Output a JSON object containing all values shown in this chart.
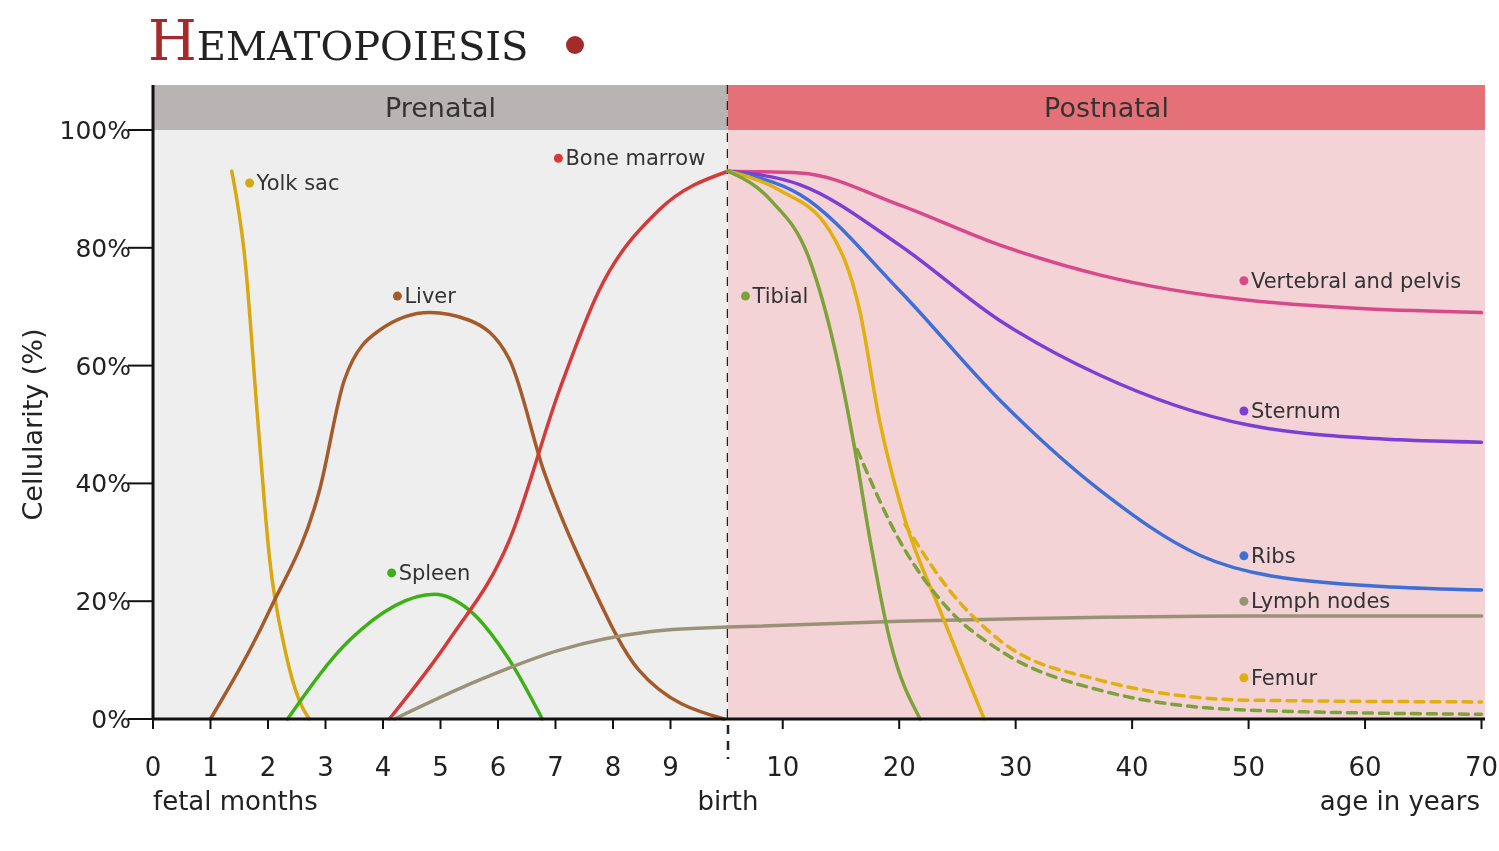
{
  "chart_data": [
    {
      "type": "line",
      "title": "HEMATOPOIESIS",
      "ylabel": "Cellularity (%)",
      "xlabel": "fetal months",
      "xlim": [
        0,
        10
      ],
      "xticks": [
        0,
        1,
        2,
        3,
        4,
        5,
        6,
        7,
        8,
        9
      ],
      "ylim": [
        0,
        100
      ],
      "yticks": [
        {
          "value": 0,
          "label": "0%"
        },
        {
          "value": 20,
          "label": "20%"
        },
        {
          "value": 40,
          "label": "40%"
        },
        {
          "value": 60,
          "label": "60%"
        },
        {
          "value": 80,
          "label": "80%"
        },
        {
          "value": 100,
          "label": "100%"
        }
      ],
      "grid": false,
      "legend": "top",
      "marker": "none",
      "bands": [
        {
          "axis": "x",
          "from": 0,
          "to": 10,
          "label": "Prenatal",
          "color": "#efeeee"
        }
      ],
      "ref_lines": [
        {
          "axis": "x",
          "value": 10,
          "label": "birth",
          "color": "#222222",
          "line_style": "dashed"
        }
      ],
      "series": [
        {
          "name": "Yolk sac",
          "color": "#d9a710",
          "x": [
            1.37,
            1.6,
            1.82,
            2.03,
            2.29,
            2.55,
            2.72
          ],
          "values": [
            93,
            78,
            51,
            27,
            12,
            3,
            0
          ]
        },
        {
          "name": "Liver",
          "color": "#a55a2a",
          "x": [
            1.0,
            2.03,
            2.9,
            3.33,
            3.94,
            4.81,
            5.5,
            6.2,
            6.8,
            7.59,
            8.45,
            9.93
          ],
          "values": [
            0,
            18.5,
            39,
            57.6,
            66,
            69,
            67.7,
            61,
            42,
            23.6,
            8.3,
            0
          ]
        },
        {
          "name": "Spleen",
          "color": "#3cb014",
          "x": [
            2.34,
            3.42,
            4.9,
            5.5,
            6.2,
            6.77
          ],
          "values": [
            0,
            13.4,
            21.2,
            18.5,
            10,
            0
          ]
        },
        {
          "name": "Bone marrow",
          "color": "#d43a3a",
          "x": [
            4.11,
            5.15,
            6.2,
            7.07,
            7.76,
            8.8,
            10
          ],
          "values": [
            0,
            13.4,
            30.4,
            55.9,
            72.8,
            86.4,
            93
          ]
        },
        {
          "color": "#9a9277",
          "x": [
            4.2,
            5.67,
            7.07,
            8.63,
            10
          ],
          "values": [
            0,
            6.6,
            11.7,
            14.8,
            15.6
          ]
        }
      ]
    },
    {
      "type": "line",
      "xlabel": "age in years",
      "xlim": [
        5.3,
        70.3
      ],
      "xticks": [
        10,
        20,
        30,
        40,
        50,
        60,
        70
      ],
      "ylim": [
        0,
        100
      ],
      "tick_labels": "x",
      "grid": false,
      "legend": "right",
      "marker": "none",
      "bands": [
        {
          "axis": "x",
          "from": 5.3,
          "to": 70.3,
          "label": "Postnatal",
          "color": "#f3d3d5"
        }
      ],
      "series": [
        {
          "name": "Vertebral and pelvis",
          "color": "#d9488a",
          "x": [
            5.3,
            11.5,
            20,
            28.6,
            37.2,
            50,
            70
          ],
          "values": [
            93,
            92.7,
            87.3,
            80.5,
            75.4,
            71.1,
            69
          ]
        },
        {
          "name": "Sternum",
          "color": "#7b3fd6",
          "x": [
            5.3,
            11.5,
            20,
            28.6,
            37.2,
            50,
            62.9,
            70
          ],
          "values": [
            93,
            90.7,
            80.5,
            67.7,
            58.4,
            49.9,
            47.4,
            47
          ]
        },
        {
          "name": "Ribs",
          "color": "#3f6fd6",
          "x": [
            5.3,
            11.5,
            20,
            28.6,
            37.2,
            45.8,
            54.4,
            70
          ],
          "values": [
            93,
            89,
            72.8,
            54.2,
            38.9,
            27.8,
            23.6,
            21.9
          ]
        },
        {
          "name": "Lymph nodes",
          "color": "#9a9277",
          "x": [
            5.3,
            20,
            35,
            50,
            70
          ],
          "values": [
            15.6,
            16.6,
            17.2,
            17.5,
            17.5
          ]
        },
        {
          "name": "Femur",
          "color": "#e0b010",
          "x": [
            5.3,
            9.7,
            14,
            16.6,
            18.3,
            20.5,
            23.5,
            27.3
          ],
          "values": [
            93,
            89.8,
            83,
            69.4,
            50.8,
            33.8,
            18.5,
            0
          ]
        },
        {
          "name": "Tibial",
          "color": "#7ea23a",
          "x": [
            5.3,
            9,
            12.3,
            14.5,
            16.2,
            17.5,
            19.2,
            21.8
          ],
          "values": [
            93,
            88,
            78,
            62.6,
            45.7,
            30.4,
            13.4,
            0
          ]
        },
        {
          "color": "#e0b010",
          "line_style": "dashed",
          "x": [
            20.5,
            24.3,
            28.6,
            37.2,
            50,
            70
          ],
          "values": [
            33,
            21.9,
            13.4,
            6.6,
            3.2,
            2.9
          ]
        },
        {
          "color": "#7ea23a",
          "line_style": "dashed",
          "x": [
            16.4,
            20,
            24.3,
            28.6,
            37.2,
            50,
            70
          ],
          "values": [
            45.7,
            30.4,
            18.5,
            11.7,
            4.9,
            1.5,
            0.8
          ]
        }
      ]
    }
  ]
}
